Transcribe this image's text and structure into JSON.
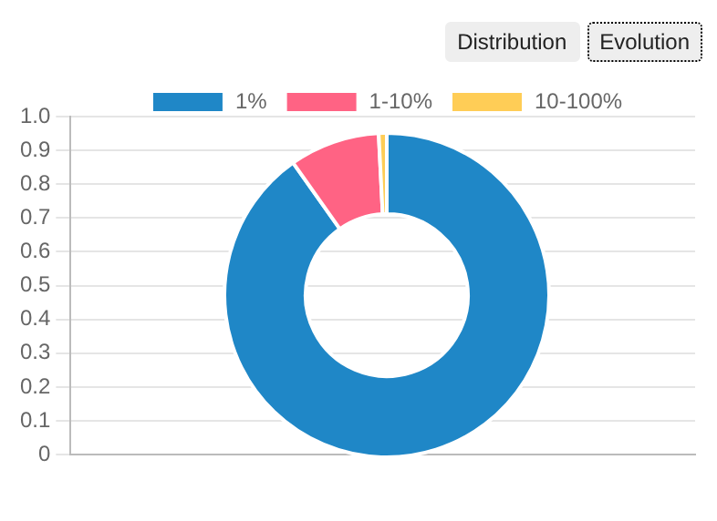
{
  "chart_data": [
    {
      "type": "donut",
      "categories": [
        "1%",
        "1-10%",
        "10-100%"
      ],
      "values": [
        90.2,
        9,
        0.8
      ],
      "colors": [
        "#1f87c7",
        "#ff6384",
        "#ffcd56"
      ],
      "legend": "top",
      "annotations": [
        "Distribution",
        "Evolution"
      ]
    },
    {
      "type": "bar",
      "categories": [
        null
      ],
      "values": [
        null
      ],
      "ylim": [
        0,
        1
      ],
      "yticks": [
        0,
        0.1,
        0.2,
        0.3,
        0.4,
        0.5,
        0.6,
        0.7,
        0.8,
        0.9,
        {
          "value": 1,
          "label": "1.0"
        }
      ],
      "grid": "y"
    }
  ]
}
